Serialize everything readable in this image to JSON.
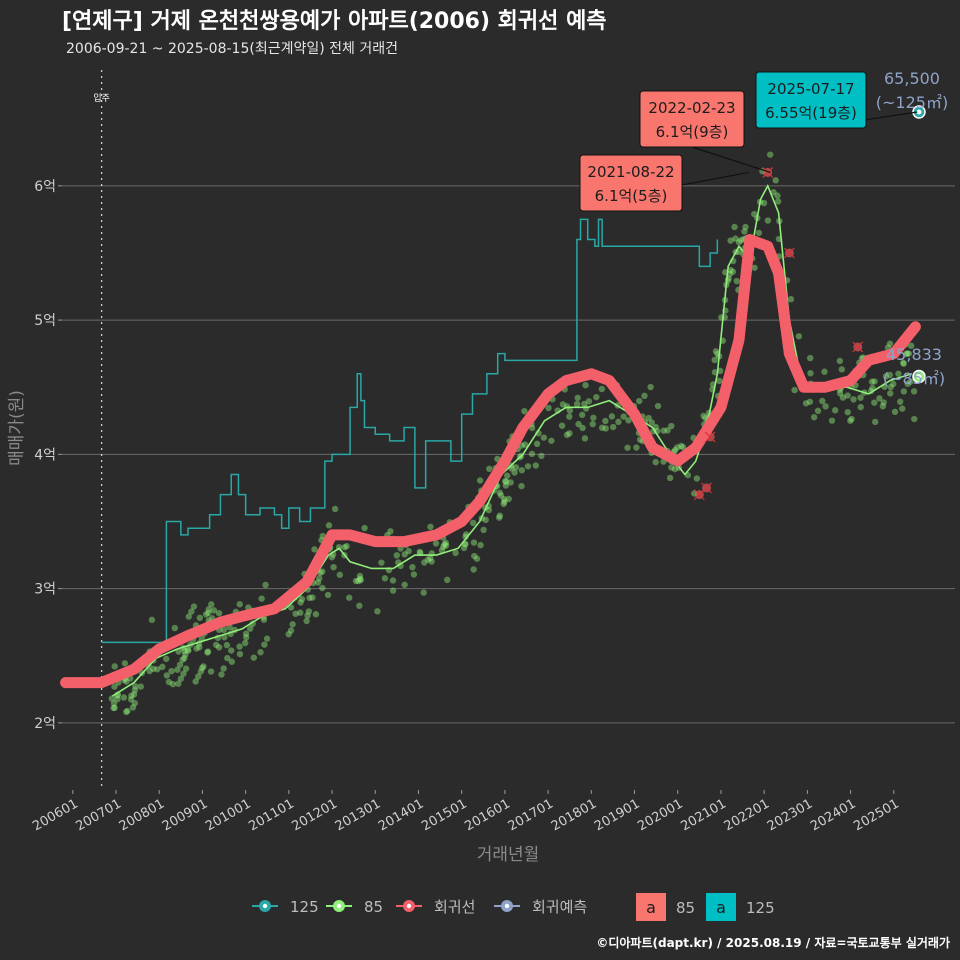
{
  "title": "[연제구] 거제 온천천쌍용예가 아파트(2006) 회귀선 예측",
  "subtitle": "2006-09-21 ~ 2025-08-15(최근계약일) 전체 거래건",
  "caption": "©디아파트(dapt.kr) / 2025.08.19 / 자료=국토교통부 실거래가",
  "colors": {
    "background": "#2b2b2b",
    "grid": "#6a6a6a",
    "s125": "#2aa7a7",
    "s85": "#90ee7a",
    "regression": "#f4606a",
    "forecast": "#8fa3c9",
    "anno_red": "#f8766d",
    "anno_teal": "#00bfc4"
  },
  "chart_data": {
    "type": "line",
    "xlabel": "거래년월",
    "ylabel": "매매가(원)",
    "ylim": [
      1.5,
      6.9
    ],
    "xlim": [
      "2005-10",
      "2026-06"
    ],
    "y_ticks": [
      {
        "value": 2,
        "label": "2억"
      },
      {
        "value": 3,
        "label": "3억"
      },
      {
        "value": 4,
        "label": "4억"
      },
      {
        "value": 5,
        "label": "5억"
      },
      {
        "value": 6,
        "label": "6억"
      }
    ],
    "x_ticks": [
      "200601",
      "200701",
      "200801",
      "200901",
      "201001",
      "201101",
      "201201",
      "201301",
      "201401",
      "201501",
      "201601",
      "201701",
      "201801",
      "201901",
      "202001",
      "202101",
      "202201",
      "202301",
      "202401",
      "202501"
    ],
    "grid": true,
    "vline": {
      "date": "2006-09",
      "label": "입주"
    },
    "series": [
      {
        "name": "125",
        "style": "step",
        "points": [
          [
            "2006-08",
            4.5
          ],
          [
            "2006-09",
            2.6
          ],
          [
            "2006-11",
            2.6
          ],
          [
            "2008-03",
            3.5
          ],
          [
            "2008-06",
            3.5
          ],
          [
            "2008-07",
            3.4
          ],
          [
            "2008-09",
            3.45
          ],
          [
            "2008-12",
            3.45
          ],
          [
            "2009-03",
            3.55
          ],
          [
            "2009-06",
            3.7
          ],
          [
            "2009-09",
            3.85
          ],
          [
            "2009-11",
            3.7
          ],
          [
            "2010-01",
            3.55
          ],
          [
            "2010-05",
            3.6
          ],
          [
            "2010-09",
            3.55
          ],
          [
            "2010-11",
            3.45
          ],
          [
            "2011-01",
            3.6
          ],
          [
            "2011-04",
            3.5
          ],
          [
            "2011-07",
            3.6
          ],
          [
            "2011-11",
            3.95
          ],
          [
            "2012-01",
            4.0
          ],
          [
            "2012-04",
            4.0
          ],
          [
            "2012-06",
            4.35
          ],
          [
            "2012-08",
            4.6
          ],
          [
            "2012-09",
            4.4
          ],
          [
            "2012-10",
            4.2
          ],
          [
            "2013-01",
            4.15
          ],
          [
            "2013-05",
            4.1
          ],
          [
            "2013-09",
            4.2
          ],
          [
            "2013-12",
            3.75
          ],
          [
            "2014-03",
            4.1
          ],
          [
            "2014-07",
            4.1
          ],
          [
            "2014-10",
            3.95
          ],
          [
            "2015-01",
            4.3
          ],
          [
            "2015-04",
            4.45
          ],
          [
            "2015-08",
            4.6
          ],
          [
            "2015-11",
            4.75
          ],
          [
            "2016-01",
            4.7
          ],
          [
            "2017-09",
            5.6
          ],
          [
            "2017-10",
            5.75
          ],
          [
            "2017-12",
            5.6
          ],
          [
            "2018-02",
            5.55
          ],
          [
            "2018-03",
            5.75
          ],
          [
            "2018-04",
            5.55
          ],
          [
            "2018-05",
            5.55
          ],
          [
            "2020-07",
            5.4
          ],
          [
            "2020-10",
            5.5
          ],
          [
            "2020-12",
            5.6
          ]
        ]
      },
      {
        "name": "85",
        "style": "line",
        "points": [
          [
            "2006-12",
            2.2
          ],
          [
            "2007-06",
            2.3
          ],
          [
            "2007-12",
            2.48
          ],
          [
            "2008-06",
            2.55
          ],
          [
            "2008-12",
            2.6
          ],
          [
            "2009-06",
            2.65
          ],
          [
            "2009-12",
            2.7
          ],
          [
            "2010-06",
            2.8
          ],
          [
            "2010-12",
            2.85
          ],
          [
            "2011-06",
            3.0
          ],
          [
            "2011-12",
            3.25
          ],
          [
            "2012-03",
            3.3
          ],
          [
            "2012-06",
            3.2
          ],
          [
            "2012-12",
            3.15
          ],
          [
            "2013-06",
            3.15
          ],
          [
            "2013-12",
            3.25
          ],
          [
            "2014-06",
            3.25
          ],
          [
            "2014-12",
            3.3
          ],
          [
            "2015-06",
            3.5
          ],
          [
            "2015-12",
            3.85
          ],
          [
            "2016-06",
            4.0
          ],
          [
            "2016-12",
            4.25
          ],
          [
            "2017-06",
            4.35
          ],
          [
            "2017-12",
            4.35
          ],
          [
            "2018-06",
            4.4
          ],
          [
            "2018-12",
            4.3
          ],
          [
            "2019-06",
            4.2
          ],
          [
            "2019-12",
            3.95
          ],
          [
            "2020-03",
            3.85
          ],
          [
            "2020-06",
            3.95
          ],
          [
            "2020-09",
            4.2
          ],
          [
            "2020-12",
            4.6
          ],
          [
            "2021-03",
            5.4
          ],
          [
            "2021-06",
            5.55
          ],
          [
            "2021-09",
            5.45
          ],
          [
            "2021-12",
            5.9
          ],
          [
            "2022-02",
            6.0
          ],
          [
            "2022-05",
            5.8
          ],
          [
            "2022-08",
            5.0
          ],
          [
            "2022-11",
            4.6
          ],
          [
            "2023-02",
            4.5
          ],
          [
            "2023-06",
            4.5
          ],
          [
            "2023-12",
            4.5
          ],
          [
            "2024-06",
            4.45
          ],
          [
            "2024-12",
            4.55
          ],
          [
            "2025-06",
            4.6
          ]
        ]
      },
      {
        "name": "회귀선",
        "style": "thick",
        "points": [
          [
            "2005-11",
            2.3
          ],
          [
            "2006-09",
            2.3
          ],
          [
            "2007-06",
            2.4
          ],
          [
            "2008-01",
            2.55
          ],
          [
            "2008-09",
            2.65
          ],
          [
            "2009-06",
            2.75
          ],
          [
            "2010-01",
            2.8
          ],
          [
            "2010-09",
            2.85
          ],
          [
            "2011-06",
            3.05
          ],
          [
            "2012-01",
            3.4
          ],
          [
            "2012-06",
            3.4
          ],
          [
            "2013-01",
            3.35
          ],
          [
            "2013-09",
            3.35
          ],
          [
            "2014-06",
            3.4
          ],
          [
            "2015-01",
            3.5
          ],
          [
            "2015-06",
            3.65
          ],
          [
            "2016-01",
            3.95
          ],
          [
            "2016-06",
            4.2
          ],
          [
            "2017-01",
            4.45
          ],
          [
            "2017-06",
            4.55
          ],
          [
            "2018-01",
            4.6
          ],
          [
            "2018-06",
            4.55
          ],
          [
            "2019-01",
            4.3
          ],
          [
            "2019-06",
            4.05
          ],
          [
            "2020-01",
            3.95
          ],
          [
            "2020-06",
            4.05
          ],
          [
            "2021-01",
            4.35
          ],
          [
            "2021-06",
            4.85
          ],
          [
            "2021-09",
            5.6
          ],
          [
            "2022-02",
            5.55
          ],
          [
            "2022-05",
            5.35
          ],
          [
            "2022-08",
            4.75
          ],
          [
            "2022-12",
            4.5
          ],
          [
            "2023-06",
            4.5
          ],
          [
            "2024-01",
            4.55
          ],
          [
            "2024-06",
            4.7
          ],
          [
            "2025-01",
            4.75
          ],
          [
            "2025-07",
            4.95
          ]
        ]
      },
      {
        "name": "회귀예측",
        "style": "point",
        "points": [
          [
            "2025-08",
            4.58
          ],
          [
            "2025-08",
            6.55
          ]
        ]
      }
    ],
    "annotations": [
      {
        "date": "2021-08-22",
        "value": "6.1억(5층)",
        "price": 6.1,
        "color": "red"
      },
      {
        "date": "2022-02-23",
        "value": "6.1억(9층)",
        "price": 6.1,
        "color": "red"
      },
      {
        "date": "2025-07-17",
        "value": "6.55억(19층)",
        "price": 6.55,
        "color": "teal"
      }
    ],
    "side_labels": [
      {
        "line1": "65,500",
        "line2": "(~125㎡)",
        "price": 6.55
      },
      {
        "line1": "45,833",
        "line2": "(~85㎡)",
        "price": 4.58
      }
    ],
    "legend": {
      "placement": "bottom",
      "lines": [
        "125",
        "85",
        "회귀선",
        "회귀예측"
      ],
      "fills": [
        {
          "key": "a",
          "label": "85"
        },
        {
          "key": "a",
          "label": "125"
        }
      ]
    }
  }
}
